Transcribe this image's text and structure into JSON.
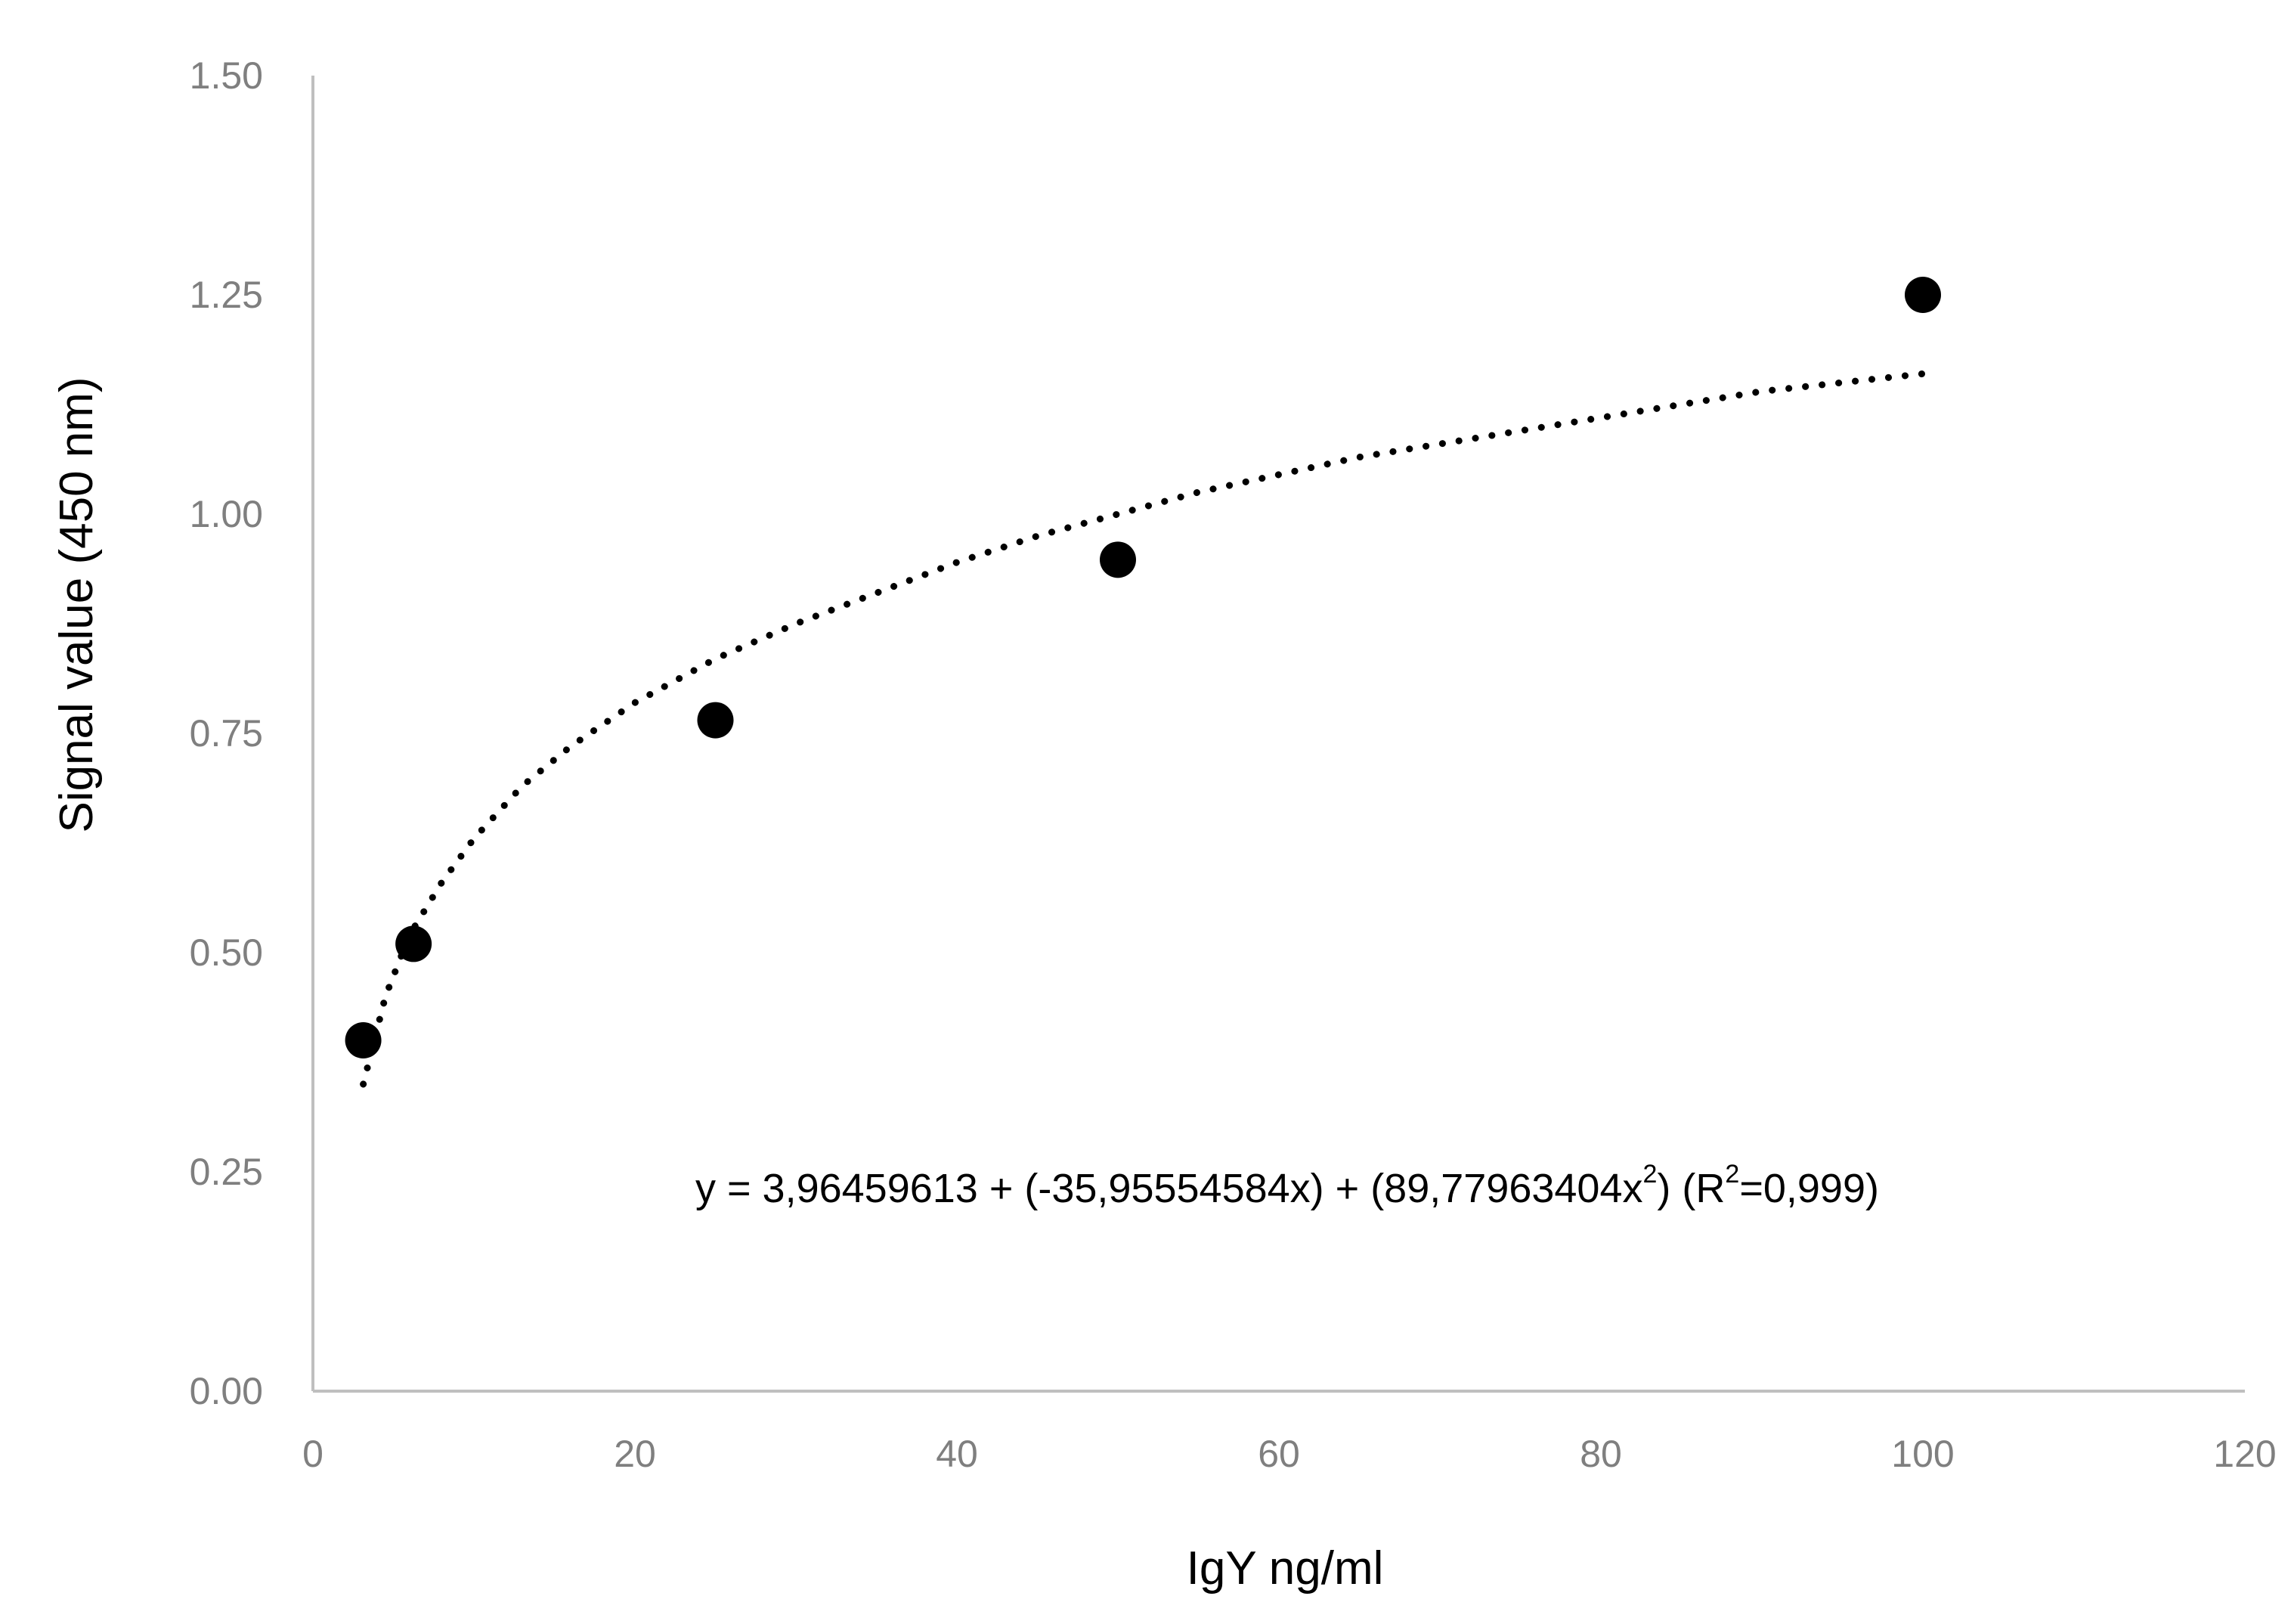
{
  "chart_data": {
    "type": "scatter",
    "title": "",
    "xlabel": "IgY ng/ml",
    "ylabel": "Signal value (450 nm)",
    "xlim": [
      0,
      120
    ],
    "ylim": [
      0,
      1.5
    ],
    "x_ticks": [
      0,
      20,
      40,
      60,
      80,
      100,
      120
    ],
    "y_ticks": [
      0,
      0.25,
      0.5,
      0.75,
      1.0,
      1.25,
      1.5
    ],
    "x_tick_labels": [
      "0",
      "20",
      "40",
      "60",
      "80",
      "100",
      "120"
    ],
    "y_tick_labels": [
      "0.00",
      "0.25",
      "0.50",
      "0.75",
      "1.00",
      "1.25",
      "1.50"
    ],
    "grid": false,
    "legend": "none",
    "series": [
      {
        "x": [
          3.125,
          6.25,
          25,
          50,
          100
        ],
        "y": [
          0.4,
          0.51,
          0.765,
          0.948,
          1.25
        ]
      }
    ],
    "trendline": {
      "style": "dotted",
      "x_range": [
        3.125,
        100
      ],
      "points": [
        [
          3.125,
          0.35
        ],
        [
          4.5,
          0.45
        ],
        [
          6,
          0.52
        ],
        [
          8,
          0.58
        ],
        [
          10,
          0.63
        ],
        [
          13,
          0.69
        ],
        [
          16,
          0.735
        ],
        [
          20,
          0.785
        ],
        [
          25,
          0.835
        ],
        [
          30,
          0.875
        ],
        [
          35,
          0.91
        ],
        [
          40,
          0.945
        ],
        [
          45,
          0.975
        ],
        [
          50,
          1.0
        ],
        [
          55,
          1.025
        ],
        [
          60,
          1.045
        ],
        [
          65,
          1.065
        ],
        [
          70,
          1.08
        ],
        [
          75,
          1.095
        ],
        [
          80,
          1.11
        ],
        [
          85,
          1.125
        ],
        [
          90,
          1.14
        ],
        [
          95,
          1.15
        ],
        [
          100,
          1.16
        ]
      ]
    },
    "annotation": {
      "pre": "y = 3,96459613 + (-35,95554584x) + (89,77963404x",
      "sup1": "2",
      "mid": ") (R",
      "sup2": "2",
      "post": "=0,999)"
    },
    "colors": {
      "marker": "#000000",
      "trendline": "#000000",
      "axis": "#bfbfbf",
      "tick_label": "#7f7f7f"
    }
  }
}
